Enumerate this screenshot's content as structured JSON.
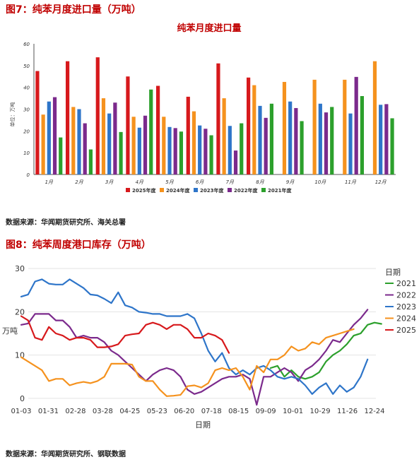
{
  "figure1": {
    "heading": "图7：纯苯月度进口量（万吨）",
    "source": "数据来源：华闻期货研究所、海关总署"
  },
  "figure2": {
    "heading": "图8：纯苯周度港口库存（万吨）",
    "source": "数据来源：华闻期货研究所、钢联数据"
  },
  "chart_data": [
    {
      "type": "bar",
      "title": "纯苯月度进口量",
      "ylabel": "单位：万吨",
      "xlabel": "",
      "ylim": [
        0,
        60
      ],
      "yticks": [
        0,
        10,
        20,
        30,
        40,
        50,
        60
      ],
      "grid": false,
      "legend": "bottom",
      "categories": [
        "1月",
        "2月",
        "3月",
        "4月",
        "5月",
        "6月",
        "7月",
        "8月",
        "9月",
        "10月",
        "11月",
        "12月"
      ],
      "series": [
        {
          "name": "2025年度",
          "color": "#d7191c",
          "values": [
            47.5,
            52,
            53.8,
            45,
            40.7,
            35.7,
            51,
            44.5,
            null,
            null,
            null,
            null
          ]
        },
        {
          "name": "2024年度",
          "color": "#f5921e",
          "values": [
            27.5,
            31,
            35,
            26.5,
            26.5,
            29,
            35,
            41,
            42.5,
            43.5,
            43.5,
            52
          ]
        },
        {
          "name": "2023年度",
          "color": "#2e75c9",
          "values": [
            33.5,
            30,
            28,
            21.5,
            21.8,
            22.5,
            22.3,
            31.5,
            33.5,
            32.5,
            28,
            32
          ]
        },
        {
          "name": "2022年度",
          "color": "#7b2a8c",
          "values": [
            35.5,
            23.5,
            33,
            27,
            21.3,
            21,
            11,
            26,
            30.5,
            28.5,
            44.8,
            32.3
          ]
        },
        {
          "name": "2021年度",
          "color": "#2ca02c",
          "values": [
            17,
            11.5,
            19.5,
            39,
            19.7,
            18,
            23.5,
            32.5,
            24.5,
            31,
            36,
            25.8
          ]
        }
      ]
    },
    {
      "type": "line",
      "title": "",
      "xlabel": "日期",
      "ylabel": "万吨",
      "ylim": [
        -1,
        31
      ],
      "yticks": [
        0,
        10,
        20,
        30
      ],
      "grid": true,
      "legend": "right",
      "legend_title": "日期",
      "xticks": [
        "01-03",
        "01-31",
        "02-28",
        "03-28",
        "04-25",
        "05-23",
        "06-20",
        "07-18",
        "08-15",
        "09-09",
        "10-01",
        "10-29",
        "11-26",
        "12-24"
      ],
      "series": [
        {
          "name": "2021",
          "color": "#2ca02c",
          "values": [
            null,
            null,
            null,
            null,
            null,
            null,
            null,
            null,
            null,
            null,
            null,
            null,
            null,
            null,
            null,
            null,
            null,
            null,
            null,
            null,
            null,
            null,
            null,
            null,
            null,
            null,
            null,
            null,
            null,
            null,
            null,
            null,
            null,
            null,
            null,
            null,
            7,
            7.5,
            5,
            6.5,
            5,
            4.5,
            5,
            6,
            8.5,
            10,
            11,
            12.5,
            14.5,
            15,
            17,
            17.5,
            17.2
          ]
        },
        {
          "name": "2022",
          "color": "#7b2a8c",
          "values": [
            17,
            17.3,
            19.5,
            19.5,
            19.5,
            18,
            18,
            16.5,
            14,
            14.5,
            14,
            14,
            13,
            11,
            10,
            8.5,
            7,
            5.5,
            4,
            5.5,
            6.5,
            7,
            6.5,
            5,
            2,
            1,
            1.5,
            2.5,
            3.5,
            4.5,
            5,
            5,
            5.5,
            4.5,
            -1.5,
            5,
            5,
            6,
            7,
            6,
            4,
            6.5,
            7.5,
            9,
            11,
            13.5,
            13,
            15,
            17,
            18.5,
            20.5
          ]
        },
        {
          "name": "2023",
          "color": "#2e75c9",
          "values": [
            23.5,
            24,
            27,
            27.5,
            26.5,
            26.3,
            26.3,
            27.5,
            26.5,
            25.5,
            24,
            23.8,
            23,
            22,
            24.5,
            21.5,
            21,
            20,
            19.8,
            19.5,
            19.5,
            19,
            19,
            19,
            19.5,
            18.5,
            15,
            11,
            8.5,
            10.5,
            7,
            5.5,
            6.5,
            5.5,
            7,
            7.5,
            6.5,
            5,
            4.5,
            5,
            4.5,
            3,
            1,
            2.5,
            3.5,
            1,
            3,
            1.5,
            2.5,
            5,
            9
          ]
        },
        {
          "name": "2024",
          "color": "#f5921e",
          "values": [
            9.5,
            8.5,
            7.5,
            6.5,
            4,
            4.5,
            4.5,
            3,
            3.5,
            3.8,
            3.5,
            4,
            5,
            8,
            8,
            8,
            7.8,
            5,
            4,
            4,
            2,
            0.5,
            0.6,
            0.8,
            2.8,
            3,
            2.5,
            3.5,
            6.5,
            7,
            6.5,
            7,
            5,
            2,
            7.5,
            6,
            9,
            9,
            10,
            12,
            11,
            11.5,
            13,
            12.5,
            14,
            14.5,
            15,
            15.5,
            16
          ]
        },
        {
          "name": "2025",
          "color": "#d7191c",
          "values": [
            19,
            18,
            14,
            13.5,
            16.5,
            15,
            14.5,
            13.5,
            14,
            14,
            13.5,
            11.8,
            11.8,
            12,
            12.5,
            14.5,
            14.8,
            15,
            17,
            17.5,
            17,
            16,
            17,
            17,
            16,
            14,
            14,
            15,
            14.5,
            13.5,
            10.5
          ]
        }
      ]
    }
  ]
}
